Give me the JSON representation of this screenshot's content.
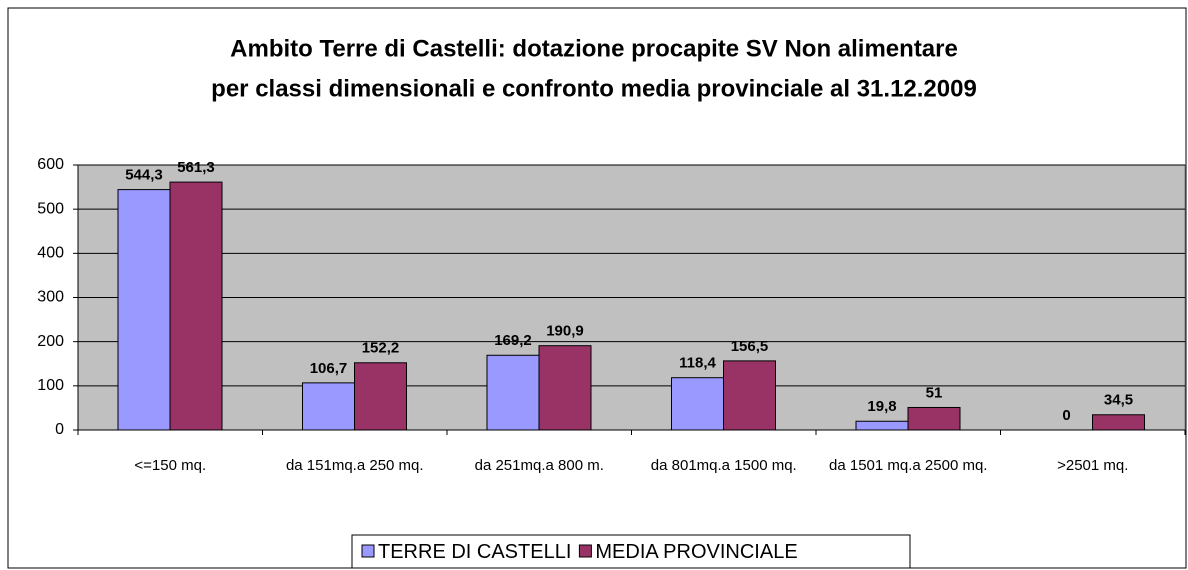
{
  "chart_data": {
    "type": "bar",
    "title": [
      "Ambito Terre di Castelli: dotazione procapite  SV Non alimentare",
      "per classi dimensionali e confronto media provinciale al 31.12.2009"
    ],
    "categories": [
      "<=150 mq.",
      "da 151mq.a 250 mq.",
      "da 251mq.a 800 m.",
      "da 801mq.a 1500 mq.",
      "da 1501 mq.a 2500 mq.",
      ">2501 mq."
    ],
    "series": [
      {
        "name": "TERRE DI CASTELLI",
        "color": "#9999ff",
        "values": [
          544.3,
          106.7,
          169.2,
          118.4,
          19.8,
          0
        ],
        "value_labels": [
          "544,3",
          "106,7",
          "169,2",
          "118,4",
          "19,8",
          "0"
        ]
      },
      {
        "name": "MEDIA PROVINCIALE",
        "color": "#993366",
        "values": [
          561.3,
          152.2,
          190.9,
          156.5,
          51,
          34.5
        ],
        "value_labels": [
          "561,3",
          "152,2",
          "190,9",
          "156,5",
          "51",
          "34,5"
        ]
      }
    ],
    "ylim": [
      0,
      600
    ],
    "yticks": [
      0,
      100,
      200,
      300,
      400,
      500,
      600
    ],
    "grid": true,
    "legend": "bottom"
  }
}
